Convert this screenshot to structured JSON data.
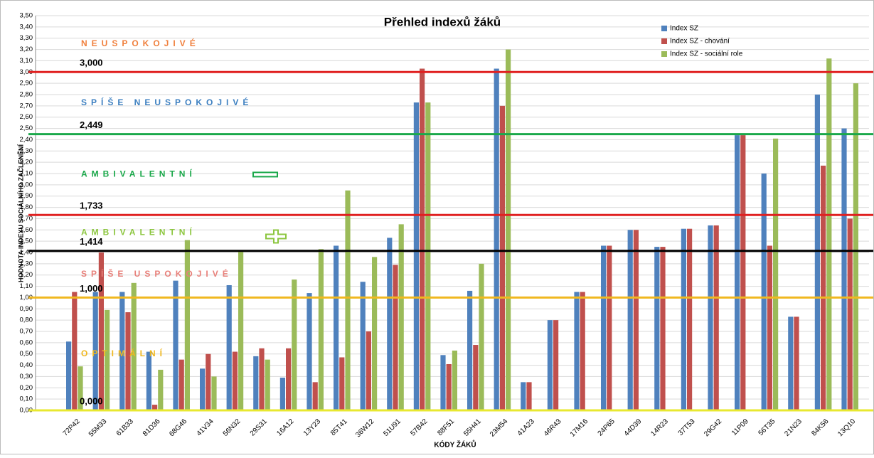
{
  "chart_data": {
    "type": "bar",
    "title": "Přehled indexů žáků",
    "x_label": "KÓDY ŽÁKŮ",
    "y_label": "HODNOTA INDEXU SOCIÁLNÍHO ZAČLENĚNÍ",
    "categories": [
      "72P42",
      "55M33",
      "61B33",
      "81D36",
      "68G46",
      "41V34",
      "56N32",
      "29S31",
      "16A12",
      "13Y23",
      "85T41",
      "36W12",
      "51U91",
      "57B42",
      "88F51",
      "55H41",
      "23M54",
      "41A23",
      "46R43",
      "17M16",
      "24P65",
      "44D39",
      "14R23",
      "37T53",
      "29G42",
      "11P09",
      "56T35",
      "21N23",
      "84K56",
      "13Q10"
    ],
    "series": [
      {
        "name": "Index SZ",
        "color": "#4f81bd",
        "values": [
          0.61,
          1.05,
          1.05,
          0.52,
          1.15,
          0.37,
          1.11,
          0.48,
          0.29,
          1.04,
          1.46,
          1.14,
          1.53,
          2.73,
          0.49,
          1.06,
          3.03,
          0.25,
          0.8,
          1.05,
          1.46,
          1.6,
          1.45,
          1.61,
          1.64,
          2.44,
          2.1,
          0.83,
          2.8,
          2.5
        ]
      },
      {
        "name": "Index SZ - chování",
        "color": "#c0504d",
        "values": [
          1.05,
          1.4,
          0.87,
          0.05,
          0.45,
          0.5,
          0.52,
          0.55,
          0.55,
          0.25,
          0.47,
          0.7,
          1.29,
          3.03,
          0.41,
          0.58,
          2.7,
          0.25,
          0.8,
          1.05,
          1.46,
          1.6,
          1.45,
          1.61,
          1.64,
          2.44,
          1.46,
          0.83,
          2.17,
          1.7
        ]
      },
      {
        "name": "Index SZ - sociální role",
        "color": "#9bbb59",
        "values": [
          0.39,
          0.89,
          1.13,
          0.36,
          1.51,
          0.3,
          1.42,
          0.45,
          1.16,
          1.43,
          1.95,
          1.36,
          1.65,
          2.73,
          0.53,
          1.3,
          3.2,
          null,
          null,
          null,
          null,
          null,
          null,
          null,
          null,
          null,
          2.41,
          null,
          3.12,
          2.9
        ]
      }
    ],
    "ylim": [
      0,
      3.5
    ],
    "yticks": [
      {
        "value": 0,
        "label": "0,00"
      },
      {
        "value": 0.1,
        "label": "0,10"
      },
      {
        "value": 0.2,
        "label": "0,20"
      },
      {
        "value": 0.3,
        "label": "0,30"
      },
      {
        "value": 0.4,
        "label": "0,40"
      },
      {
        "value": 0.5,
        "label": "0,50"
      },
      {
        "value": 0.6,
        "label": "0,60"
      },
      {
        "value": 0.7,
        "label": "0,70"
      },
      {
        "value": 0.8,
        "label": "0,80"
      },
      {
        "value": 0.9,
        "label": "0,90"
      },
      {
        "value": 1,
        "label": "1,00"
      },
      {
        "value": 1.1,
        "label": "1,10"
      },
      {
        "value": 1.2,
        "label": "1,20"
      },
      {
        "value": 1.3,
        "label": "1,30"
      },
      {
        "value": 1.4,
        "label": "1,40"
      },
      {
        "value": 1.5,
        "label": "1,50"
      },
      {
        "value": 1.6,
        "label": "1,60"
      },
      {
        "value": 1.7,
        "label": "1,70"
      },
      {
        "value": 1.8,
        "label": "1,80"
      },
      {
        "value": 1.9,
        "label": "1,90"
      },
      {
        "value": 2,
        "label": "2,00"
      },
      {
        "value": 2.1,
        "label": "2,10"
      },
      {
        "value": 2.2,
        "label": "2,20"
      },
      {
        "value": 2.3,
        "label": "2,30"
      },
      {
        "value": 2.4,
        "label": "2,40"
      },
      {
        "value": 2.5,
        "label": "2,50"
      },
      {
        "value": 2.6,
        "label": "2,60"
      },
      {
        "value": 2.7,
        "label": "2,70"
      },
      {
        "value": 2.8,
        "label": "2,80"
      },
      {
        "value": 2.9,
        "label": "2,90"
      },
      {
        "value": 3,
        "label": "3,00"
      },
      {
        "value": 3.1,
        "label": "3,10"
      },
      {
        "value": 3.2,
        "label": "3,20"
      },
      {
        "value": 3.3,
        "label": "3,30"
      },
      {
        "value": 3.4,
        "label": "3,40"
      },
      {
        "value": 3.5,
        "label": "3,50"
      }
    ],
    "grid": true,
    "legend": "upper right",
    "reference_lines": [
      {
        "value": 3,
        "label": "3,000",
        "color": "#e02020"
      },
      {
        "value": 2.449,
        "label": "2,449",
        "color": "#1aa84a"
      },
      {
        "value": 1.733,
        "label": "1,733",
        "color": "#e02020"
      },
      {
        "value": 1.414,
        "label": "1,414",
        "color": "#000000"
      },
      {
        "value": 1,
        "label": "1,000",
        "color": "#f0b820"
      },
      {
        "value": 0,
        "label": "0,000",
        "color": "#e8e830"
      }
    ],
    "zones": [
      {
        "label": "NEUSPOKOJIVÉ",
        "color": "#f07f3c"
      },
      {
        "label": "SPÍŠE NEUSPOKOJIVÉ",
        "color": "#3c7fc0"
      },
      {
        "label": "AMBIVALENTNÍ",
        "color": "#1aa84a"
      },
      {
        "label": "AMBIVALENTNÍ",
        "color": "#8cc63f"
      },
      {
        "label": "SPÍŠE USPOKOJIVÉ",
        "color": "#e8807a"
      },
      {
        "label": "OPTIMÁLNÍ",
        "color": "#f0b820"
      }
    ]
  }
}
